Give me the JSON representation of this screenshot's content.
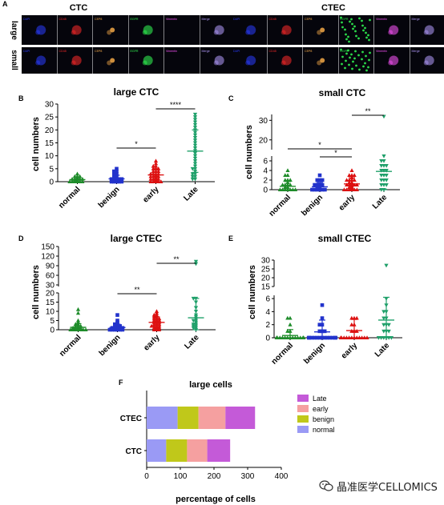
{
  "figure": {
    "panel_letters": [
      "A",
      "B",
      "C",
      "D",
      "E",
      "F"
    ],
    "panel_A": {
      "group_titles": [
        "CTC",
        "CTEC"
      ],
      "row_labels": [
        "large",
        "small"
      ],
      "channels": [
        "DAPI",
        "CD45",
        "CEP8",
        "EGFR",
        "Vimentin",
        "Merge"
      ]
    }
  },
  "colors": {
    "normal": "#1e8c2a",
    "benign": "#2233cc",
    "early": "#dd1111",
    "Late": "#1fa06a",
    "bar_normal": "#9a9af5",
    "bar_benign": "#c0c81a",
    "bar_early": "#f5a0a0",
    "bar_late": "#c45ad8"
  },
  "watermark": {
    "text": "晶准医学CELLOMICS",
    "icon": "wechat-icon"
  },
  "chart_data": [
    {
      "panel": "B",
      "type": "scatter",
      "title": "large CTC",
      "ylabel": "cell numbers",
      "categories": [
        "normal",
        "benign",
        "early",
        "Late"
      ],
      "ylim": [
        0,
        30
      ],
      "yticks": [
        0,
        5,
        10,
        15,
        20,
        25,
        30
      ],
      "means": [
        0.8,
        1.1,
        2.6,
        11.8
      ],
      "sds": [
        0.9,
        1.4,
        2.4,
        8.2
      ],
      "points": [
        [
          0,
          0,
          0,
          0,
          0,
          0,
          0.5,
          0.5,
          1,
          1,
          1,
          1,
          1,
          1.5,
          2,
          2,
          2,
          3
        ],
        [
          0,
          0,
          0,
          0,
          0,
          0.5,
          0.5,
          1,
          1,
          1,
          1,
          1,
          2,
          2,
          3,
          3,
          4,
          4,
          5
        ],
        [
          0,
          0,
          0,
          0,
          0,
          0.5,
          1,
          1,
          1,
          1,
          1.5,
          2,
          2,
          2,
          2,
          2.5,
          3,
          3,
          3,
          3,
          4,
          4,
          4,
          5,
          5,
          5,
          6,
          6,
          7,
          8
        ],
        [
          1,
          1,
          2,
          2,
          3,
          3,
          4,
          5,
          5,
          6,
          7,
          8,
          9,
          10,
          11,
          12,
          13,
          14,
          15,
          16,
          17,
          18,
          19,
          20,
          21,
          22,
          23,
          24,
          25,
          26
        ]
      ],
      "significance": [
        {
          "from": 1,
          "to": 2,
          "label": "*"
        },
        {
          "from": 2,
          "to": 3,
          "label": "****"
        }
      ]
    },
    {
      "panel": "C",
      "type": "scatter",
      "title": "small CTC",
      "ylabel": "cell numbers",
      "categories": [
        "normal",
        "benign",
        "early",
        "Late"
      ],
      "yticks": [
        0,
        2,
        4,
        6,
        20,
        30
      ],
      "axis_break": {
        "lower": [
          0,
          7
        ],
        "upper": [
          15,
          33
        ]
      },
      "means": [
        0.7,
        0.6,
        1.2,
        3.8
      ],
      "sds": [
        1.0,
        0.9,
        1.3,
        3.7
      ],
      "points": [
        [
          0,
          0,
          0,
          0,
          0,
          0,
          0,
          0.5,
          0.5,
          1,
          1,
          1,
          1,
          1.5,
          2,
          2,
          2,
          3,
          3,
          4
        ],
        [
          0,
          0,
          0,
          0,
          0,
          0,
          0.5,
          0.5,
          1,
          1,
          1,
          1,
          2,
          2,
          2,
          3
        ],
        [
          0,
          0,
          0,
          0,
          0,
          0,
          0.3,
          0.5,
          0.5,
          0.8,
          1,
          1,
          1,
          1,
          1,
          1.2,
          1.5,
          1.5,
          2,
          2,
          2,
          2,
          2.5,
          3,
          3,
          3,
          4
        ],
        [
          0,
          0,
          1,
          1,
          1,
          2,
          2,
          2,
          3,
          3,
          3,
          4,
          4,
          4,
          5,
          5,
          5,
          6,
          6,
          7,
          32
        ]
      ],
      "significance": [
        {
          "from": 0,
          "to": 2,
          "label": "*"
        },
        {
          "from": 1,
          "to": 2,
          "label": "*"
        },
        {
          "from": 2,
          "to": 3,
          "label": "**"
        }
      ]
    },
    {
      "panel": "D",
      "type": "scatter",
      "title": "large CTEC",
      "ylabel": "cell numbers",
      "categories": [
        "normal",
        "benign",
        "early",
        "Late"
      ],
      "yticks": [
        0,
        5,
        10,
        15,
        20,
        30,
        60,
        90,
        120,
        150
      ],
      "axis_break": {
        "lower": [
          0,
          20
        ],
        "upper": [
          25,
          150
        ]
      },
      "means": [
        1.3,
        1.2,
        4.0,
        6.5
      ],
      "sds": [
        2.0,
        1.8,
        3.0,
        10.5
      ],
      "points": [
        [
          0,
          0,
          0,
          0,
          0,
          0,
          0,
          1,
          1,
          1,
          1,
          2,
          2,
          2,
          3,
          3,
          4,
          5,
          9,
          11
        ],
        [
          0,
          0,
          0,
          0,
          0,
          0,
          1,
          1,
          1,
          1,
          1,
          2,
          2,
          2,
          3,
          3,
          4,
          5,
          8
        ],
        [
          0,
          0,
          0,
          1,
          1,
          1,
          2,
          2,
          2,
          2,
          3,
          3,
          3,
          4,
          4,
          4,
          5,
          5,
          5,
          6,
          6,
          6,
          7,
          7,
          8,
          8,
          9,
          10
        ],
        [
          0,
          1,
          1,
          2,
          2,
          3,
          3,
          4,
          5,
          5,
          6,
          7,
          8,
          10,
          12,
          15,
          17,
          17,
          96,
          103
        ]
      ],
      "significance": [
        {
          "from": 1,
          "to": 2,
          "label": "**"
        },
        {
          "from": 2,
          "to": 3,
          "label": "**"
        }
      ]
    },
    {
      "panel": "E",
      "type": "scatter",
      "title": "small CTEC",
      "ylabel": "cell numbers",
      "categories": [
        "normal",
        "benign",
        "early",
        "Late"
      ],
      "yticks": [
        0,
        2,
        4,
        6,
        15,
        20,
        25,
        30
      ],
      "axis_break": {
        "lower": [
          0,
          6.5
        ],
        "upper": [
          15,
          30
        ]
      },
      "means": [
        0.35,
        0.9,
        1.1,
        2.7
      ],
      "sds": [
        0.9,
        1.8,
        1.7,
        3.5
      ],
      "points": [
        [
          0,
          0,
          0,
          0,
          0,
          0,
          0,
          0,
          0,
          0,
          0,
          0,
          0,
          0,
          0,
          1,
          1,
          2,
          3,
          3
        ],
        [
          0,
          0,
          0,
          0,
          0,
          0,
          0,
          0,
          0,
          0,
          0,
          0,
          0,
          1,
          1,
          1,
          2,
          2,
          3,
          5
        ],
        [
          0,
          0,
          0,
          0,
          0,
          0,
          0,
          0,
          0,
          0,
          0,
          0,
          1,
          1,
          1,
          2,
          2,
          3,
          3,
          3
        ],
        [
          0,
          0,
          0,
          0,
          0,
          0,
          1,
          1,
          1,
          2,
          2,
          2,
          3,
          3,
          4,
          4,
          5,
          6,
          27
        ]
      ],
      "significance": []
    },
    {
      "panel": "F",
      "type": "bar",
      "orientation": "horizontal",
      "stacked": true,
      "title": "large cells",
      "xlabel": "percentage of cells",
      "categories": [
        "CTEC",
        "CTC"
      ],
      "xlim": [
        0,
        400
      ],
      "xticks": [
        0,
        100,
        200,
        300,
        400
      ],
      "series": [
        {
          "name": "normal",
          "values": [
            92,
            58
          ]
        },
        {
          "name": "benign",
          "values": [
            62,
            62
          ]
        },
        {
          "name": "early",
          "values": [
            80,
            60
          ]
        },
        {
          "name": "Late",
          "values": [
            88,
            68
          ]
        }
      ],
      "legend_order": [
        "Late",
        "early",
        "benign",
        "normal"
      ],
      "legend_position": "right"
    }
  ]
}
